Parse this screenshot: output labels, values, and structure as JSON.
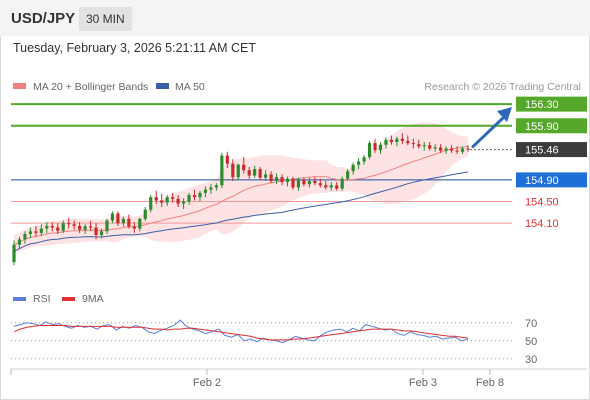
{
  "header": {
    "pair": "USD/JPY",
    "timeframe": "30 MIN"
  },
  "datetime": "Tuesday, February 3, 2026 5:21:11 AM CET",
  "copyright": "Research © 2026 Trading Central",
  "colors": {
    "resistance": "#55a82a",
    "support": "#f09a9a",
    "support_text": "#e03030",
    "pivot": "#1f4e9c",
    "pivot_label": "#1f6fd8",
    "price_label": "#3c3c3c",
    "ma20": "#f08080",
    "ma50": "#3a5fa8",
    "bollinger_fill": "#fde0e0",
    "candle_up": "#2e8b2e",
    "candle_down": "#cc2a2a",
    "rsi": "#5b7fd9",
    "rsi_ma": "#e03030",
    "arrow": "#2d6ab8"
  },
  "chart_data": [
    {
      "type": "candlestick",
      "title": "USD/JPY",
      "legend": [
        "MA 20 + Bollinger Bands",
        "MA 50"
      ],
      "legend_placement": "top-left",
      "x_tick_labels": [
        "Feb 2",
        "Feb 3",
        "Feb 8"
      ],
      "ylim": [
        153.05,
        156.45
      ],
      "levels": [
        {
          "value": 156.3,
          "label": "156.30",
          "kind": "resistance"
        },
        {
          "value": 155.9,
          "label": "155.90",
          "kind": "resistance"
        },
        {
          "value": 155.46,
          "label": "155.46",
          "kind": "last_price"
        },
        {
          "value": 154.9,
          "label": "154.90",
          "kind": "pivot"
        },
        {
          "value": 154.5,
          "label": "154.50",
          "kind": "support"
        },
        {
          "value": 154.1,
          "label": "154.10",
          "kind": "support"
        }
      ],
      "arrow": {
        "from": 155.46,
        "to": 156.3,
        "direction": "up"
      },
      "candles_ohlc": [
        [
          153.38,
          153.78,
          153.32,
          153.7
        ],
        [
          153.7,
          153.85,
          153.62,
          153.8
        ],
        [
          153.8,
          153.95,
          153.72,
          153.9
        ],
        [
          153.9,
          154.02,
          153.82,
          153.95
        ],
        [
          153.95,
          154.05,
          153.85,
          153.92
        ],
        [
          153.92,
          154.08,
          153.86,
          154.0
        ],
        [
          154.0,
          154.12,
          153.92,
          154.05
        ],
        [
          154.05,
          154.12,
          153.95,
          154.02
        ],
        [
          154.02,
          154.1,
          153.9,
          153.96
        ],
        [
          153.96,
          154.15,
          153.92,
          154.1
        ],
        [
          154.1,
          154.2,
          154.0,
          154.08
        ],
        [
          154.08,
          154.15,
          153.98,
          154.05
        ],
        [
          154.05,
          154.12,
          153.92,
          153.98
        ],
        [
          153.98,
          154.08,
          153.9,
          154.04
        ],
        [
          154.04,
          154.14,
          153.96,
          154.02
        ],
        [
          154.02,
          154.1,
          153.8,
          153.88
        ],
        [
          153.88,
          154.0,
          153.82,
          153.95
        ],
        [
          153.95,
          154.18,
          153.9,
          154.15
        ],
        [
          154.15,
          154.32,
          154.1,
          154.28
        ],
        [
          154.28,
          154.32,
          154.05,
          154.1
        ],
        [
          154.1,
          154.22,
          154.04,
          154.18
        ],
        [
          154.18,
          154.26,
          154.0,
          154.04
        ],
        [
          154.04,
          154.12,
          153.92,
          154.0
        ],
        [
          154.0,
          154.2,
          153.95,
          154.18
        ],
        [
          154.18,
          154.4,
          154.14,
          154.35
        ],
        [
          154.35,
          154.62,
          154.3,
          154.58
        ],
        [
          154.58,
          154.7,
          154.45,
          154.52
        ],
        [
          154.52,
          154.64,
          154.4,
          154.48
        ],
        [
          154.48,
          154.62,
          154.42,
          154.58
        ],
        [
          154.58,
          154.66,
          154.48,
          154.55
        ],
        [
          154.55,
          154.62,
          154.4,
          154.46
        ],
        [
          154.46,
          154.56,
          154.36,
          154.5
        ],
        [
          154.5,
          154.66,
          154.44,
          154.62
        ],
        [
          154.62,
          154.72,
          154.52,
          154.58
        ],
        [
          154.58,
          154.7,
          154.5,
          154.66
        ],
        [
          154.66,
          154.78,
          154.58,
          154.72
        ],
        [
          154.72,
          154.82,
          154.64,
          154.76
        ],
        [
          154.76,
          154.84,
          154.7,
          154.8
        ],
        [
          154.8,
          155.4,
          154.75,
          155.35
        ],
        [
          155.35,
          155.42,
          155.12,
          155.2
        ],
        [
          155.2,
          155.28,
          154.88,
          154.95
        ],
        [
          154.95,
          155.2,
          154.9,
          155.18
        ],
        [
          155.18,
          155.32,
          155.02,
          155.08
        ],
        [
          155.08,
          155.14,
          154.92,
          154.98
        ],
        [
          154.98,
          155.16,
          154.94,
          155.1
        ],
        [
          155.1,
          155.14,
          154.9,
          154.94
        ],
        [
          154.94,
          155.08,
          154.88,
          155.0
        ],
        [
          155.0,
          155.06,
          154.84,
          154.88
        ],
        [
          154.88,
          155.02,
          154.82,
          154.95
        ],
        [
          154.95,
          155.0,
          154.8,
          154.86
        ],
        [
          154.86,
          154.96,
          154.78,
          154.92
        ],
        [
          154.92,
          154.96,
          154.72,
          154.76
        ],
        [
          154.76,
          154.94,
          154.7,
          154.9
        ],
        [
          154.9,
          154.94,
          154.78,
          154.82
        ],
        [
          154.82,
          154.94,
          154.76,
          154.88
        ],
        [
          154.88,
          154.96,
          154.8,
          154.84
        ],
        [
          154.84,
          154.92,
          154.76,
          154.8
        ],
        [
          154.8,
          154.88,
          154.72,
          154.76
        ],
        [
          154.76,
          154.86,
          154.7,
          154.8
        ],
        [
          154.8,
          154.86,
          154.7,
          154.74
        ],
        [
          154.74,
          154.96,
          154.7,
          154.92
        ],
        [
          154.92,
          155.1,
          154.88,
          155.06
        ],
        [
          155.06,
          155.22,
          155.0,
          155.18
        ],
        [
          155.18,
          155.3,
          155.1,
          155.24
        ],
        [
          155.24,
          155.36,
          155.18,
          155.32
        ],
        [
          155.32,
          155.62,
          155.28,
          155.58
        ],
        [
          155.58,
          155.66,
          155.4,
          155.45
        ],
        [
          155.45,
          155.6,
          155.38,
          155.55
        ],
        [
          155.55,
          155.68,
          155.48,
          155.64
        ],
        [
          155.64,
          155.72,
          155.55,
          155.6
        ],
        [
          155.6,
          155.7,
          155.52,
          155.66
        ],
        [
          155.66,
          155.76,
          155.56,
          155.62
        ],
        [
          155.62,
          155.72,
          155.54,
          155.58
        ],
        [
          155.58,
          155.66,
          155.48,
          155.56
        ],
        [
          155.56,
          155.64,
          155.48,
          155.52
        ],
        [
          155.52,
          155.6,
          155.44,
          155.54
        ],
        [
          155.54,
          155.6,
          155.44,
          155.48
        ],
        [
          155.48,
          155.56,
          155.42,
          155.5
        ],
        [
          155.5,
          155.56,
          155.4,
          155.44
        ],
        [
          155.44,
          155.52,
          155.38,
          155.48
        ],
        [
          155.48,
          155.54,
          155.4,
          155.44
        ],
        [
          155.44,
          155.52,
          155.38,
          155.42
        ],
        [
          155.42,
          155.52,
          155.38,
          155.48
        ],
        [
          155.48,
          155.54,
          155.42,
          155.46
        ]
      ]
    },
    {
      "type": "line",
      "title": "",
      "legend": [
        "RSI",
        "9MA"
      ],
      "legend_placement": "top-left",
      "x_tick_labels": [
        "Feb 2",
        "Feb 3",
        "Feb 8"
      ],
      "ylim": [
        22,
        82
      ],
      "y_ticks": [
        "70",
        "50",
        "30"
      ],
      "series": [
        {
          "name": "RSI",
          "values": [
            66,
            68,
            70,
            69,
            67,
            71,
            68,
            69,
            66,
            64,
            67,
            65,
            66,
            63,
            67,
            68,
            62,
            66,
            64,
            67,
            65,
            60,
            58,
            62,
            64,
            67,
            73,
            66,
            63,
            61,
            58,
            60,
            63,
            56,
            54,
            57,
            50,
            52,
            49,
            53,
            51,
            50,
            48,
            51,
            55,
            53,
            51,
            50,
            56,
            60,
            62,
            63,
            60,
            64,
            61,
            68,
            66,
            64,
            62,
            63,
            58,
            56,
            60,
            57,
            56,
            54,
            55,
            52,
            53,
            54,
            50,
            52
          ]
        },
        {
          "name": "9MA",
          "values": [
            60,
            63,
            65,
            66,
            67,
            67,
            67,
            67,
            67,
            66,
            66,
            66,
            66,
            66,
            66,
            66,
            65,
            65,
            65,
            65,
            65,
            64,
            63,
            63,
            62,
            63,
            63,
            64,
            64,
            63,
            62,
            61,
            60,
            59,
            58,
            57,
            56,
            55,
            53,
            52,
            51,
            51,
            51,
            51,
            52,
            52,
            53,
            54,
            55,
            56,
            57,
            58,
            59,
            60,
            61,
            62,
            63,
            63,
            63,
            63,
            62,
            61,
            61,
            60,
            59,
            58,
            57,
            56,
            55,
            55,
            54,
            53
          ]
        }
      ]
    }
  ]
}
